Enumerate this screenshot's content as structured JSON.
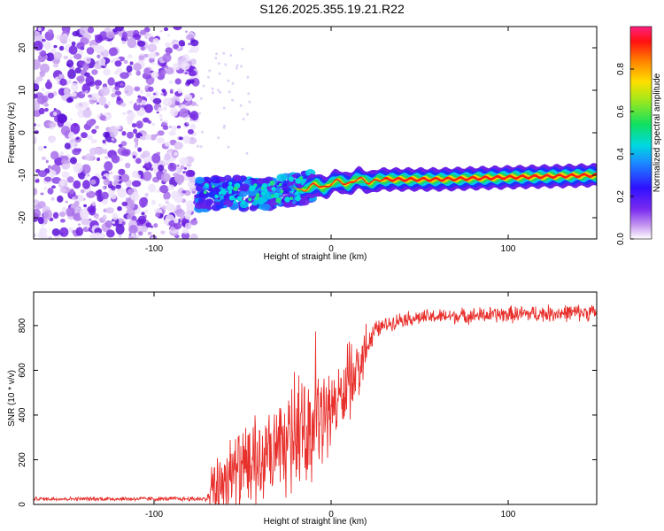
{
  "title": "S126.2025.355.19.21.R22",
  "colors": {
    "snr_line": "#e8312d",
    "frame": "#000000",
    "background": "#ffffff"
  },
  "chart_data": [
    {
      "type": "heatmap",
      "xlabel": "Height of straight line (km)",
      "ylabel": "Frequency (Hz)",
      "xlim": [
        -168,
        150
      ],
      "ylim": [
        -25,
        25
      ],
      "xticks": [
        -100,
        0,
        100
      ],
      "xtick_labels": [
        "-100",
        "0",
        "100"
      ],
      "yticks": [
        -20,
        -10,
        0,
        10,
        20
      ],
      "ytick_labels": [
        "-20",
        "-10",
        "0",
        "10",
        "20"
      ],
      "colorbar": {
        "label": "Normalized spectral amplitude",
        "range": [
          0,
          1
        ],
        "ticks": [
          0.0,
          0.2,
          0.4,
          0.6,
          0.8
        ],
        "tick_labels": [
          "0.0",
          "0.2",
          "0.4",
          "0.6",
          "0.8"
        ]
      },
      "ridge": {
        "description_x": [
          -75,
          -60,
          -40,
          -25,
          -15,
          -5,
          0,
          10,
          30,
          60,
          100,
          150
        ],
        "frequency_hz": [
          -14.5,
          -14,
          -14.5,
          -13.5,
          -13,
          -12.5,
          -12,
          -11.5,
          -11,
          -11,
          -10.5,
          -10
        ],
        "noise_region_x": [
          -168,
          -76
        ]
      }
    },
    {
      "type": "line",
      "xlabel": "Height of straight line (km)",
      "ylabel": "SNR (10 * v/v)",
      "xlim": [
        -168,
        150
      ],
      "ylim": [
        0,
        950
      ],
      "xticks": [
        -100,
        0,
        100
      ],
      "xtick_labels": [
        "-100",
        "0",
        "100"
      ],
      "yticks": [
        0,
        200,
        400,
        600,
        800
      ],
      "ytick_labels": [
        "0",
        "200",
        "400",
        "600",
        "800"
      ],
      "envelope": {
        "x": [
          -168,
          -70,
          -66,
          -60,
          -50,
          -40,
          -30,
          -20,
          -10,
          -5,
          0,
          5,
          10,
          15,
          20,
          25,
          30,
          40,
          60,
          100,
          150
        ],
        "base": [
          25,
          25,
          60,
          120,
          150,
          180,
          220,
          300,
          350,
          380,
          440,
          470,
          520,
          600,
          700,
          780,
          800,
          830,
          840,
          850,
          860
        ],
        "spread": [
          10,
          12,
          200,
          220,
          230,
          230,
          240,
          260,
          280,
          250,
          200,
          180,
          180,
          150,
          90,
          50,
          40,
          40,
          40,
          45,
          45
        ]
      }
    }
  ]
}
